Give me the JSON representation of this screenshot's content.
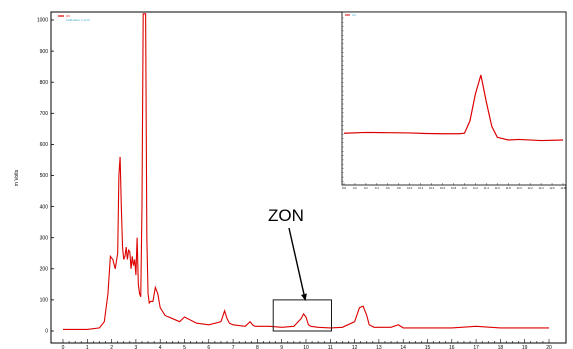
{
  "chart_data": [
    {
      "type": "line",
      "ylabel": "m Volts",
      "xlim": [
        0,
        20
      ],
      "ylim": [
        -50,
        1050
      ],
      "x_ticks": [
        "0",
        "1",
        "2",
        "3",
        "4",
        "5",
        "6",
        "7",
        "8",
        "9",
        "10",
        "11",
        "12",
        "13",
        "14",
        "15",
        "16",
        "17",
        "18",
        "19",
        "20"
      ],
      "y_ticks": [
        "0",
        "100",
        "200",
        "300",
        "400",
        "500",
        "600",
        "700",
        "800",
        "900",
        "1000"
      ],
      "legend": {
        "position": "top-left",
        "entries": [
          "UV",
          "Calibration 1 (mV)"
        ]
      },
      "annotation": {
        "label": "ZON",
        "box_x": [
          8.65,
          11.05
        ],
        "box_y": [
          0,
          100
        ],
        "arrow_target": [
          10.0,
          90
        ]
      },
      "series": [
        {
          "color": "#dd0000",
          "x": [
            0,
            0.5,
            1.0,
            1.5,
            1.7,
            1.85,
            1.95,
            2.05,
            2.15,
            2.25,
            2.3,
            2.35,
            2.4,
            2.45,
            2.5,
            2.55,
            2.6,
            2.65,
            2.7,
            2.75,
            2.8,
            2.85,
            2.9,
            2.95,
            3.0,
            3.05,
            3.1,
            3.15,
            3.2,
            3.25,
            3.3,
            3.35,
            3.4,
            3.45,
            3.5,
            3.55,
            3.6,
            3.7,
            3.8,
            3.9,
            4.0,
            4.2,
            4.5,
            4.8,
            5.0,
            5.5,
            6.0,
            6.5,
            6.65,
            6.75,
            6.85,
            7.0,
            7.5,
            7.7,
            7.8,
            7.9,
            8.5,
            9.0,
            9.5,
            9.8,
            9.9,
            10.0,
            10.1,
            10.2,
            10.5,
            11.0,
            11.5,
            12.0,
            12.2,
            12.35,
            12.5,
            12.6,
            12.8,
            13.0,
            13.5,
            13.8,
            14.0,
            15.0,
            16.0,
            17.0,
            18.0,
            19.0,
            20.0
          ],
          "y": [
            5,
            5,
            5,
            10,
            30,
            120,
            240,
            230,
            200,
            250,
            500,
            560,
            400,
            270,
            230,
            240,
            270,
            230,
            260,
            255,
            200,
            240,
            210,
            230,
            180,
            300,
            150,
            120,
            110,
            400,
            1020,
            1020,
            1020,
            300,
            120,
            90,
            95,
            95,
            140,
            120,
            75,
            50,
            40,
            30,
            45,
            25,
            20,
            30,
            65,
            40,
            25,
            20,
            15,
            30,
            20,
            15,
            15,
            12,
            15,
            40,
            55,
            45,
            20,
            15,
            12,
            10,
            12,
            30,
            75,
            80,
            50,
            20,
            12,
            12,
            12,
            20,
            10,
            10,
            10,
            15,
            10,
            10,
            10
          ]
        }
      ]
    },
    {
      "type": "line",
      "x_ticks": [
        "8.8",
        "9.0",
        "9.2",
        "9.4",
        "9.6",
        "9.8",
        "10.0",
        "10.2",
        "10.4",
        "10.6",
        "10.8",
        "11.0",
        "11.2",
        "11.4",
        "11.6",
        "11.8",
        "12.0",
        "12.2",
        "12.4",
        "12.6",
        "12.8"
      ],
      "legend": {
        "position": "top-left",
        "entries": [
          "UV"
        ]
      },
      "series": [
        {
          "color": "#dd0000",
          "x": [
            8.8,
            9.2,
            9.6,
            10.0,
            10.3,
            10.6,
            10.9,
            11.0,
            11.1,
            11.2,
            11.3,
            11.4,
            11.5,
            11.6,
            11.8,
            12.0,
            12.4,
            12.8
          ],
          "y": [
            0.45,
            0.48,
            0.47,
            0.46,
            0.44,
            0.43,
            0.43,
            0.45,
            0.9,
            1.9,
            2.6,
            1.6,
            0.7,
            0.3,
            0.2,
            0.22,
            0.18,
            0.2
          ]
        }
      ]
    }
  ]
}
